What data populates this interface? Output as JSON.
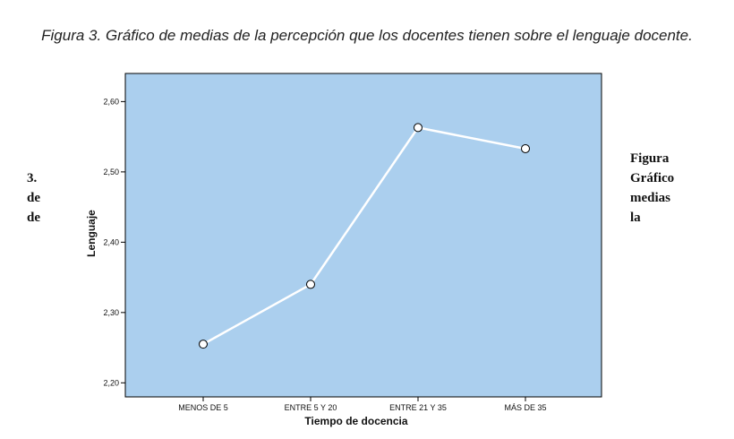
{
  "caption": "Figura 3.  Gráfico de medias de la percepción que los docentes tienen sobre el lenguaje docente.",
  "side_left": [
    "3.",
    "de",
    "de"
  ],
  "side_right": [
    "Figura",
    "Gráfico",
    "medias",
    "la"
  ],
  "colors": {
    "plot_bg": "#abcfee",
    "line": "#ffffff",
    "axis": "#000000"
  },
  "chart_data": {
    "type": "line",
    "title": "",
    "xlabel": "Tiempo de docencia",
    "ylabel": "Lenguaje",
    "categories": [
      "MENOS DE 5",
      "ENTRE 5 Y 20",
      "ENTRE 21 Y 35",
      "MÁS DE 35"
    ],
    "values": [
      2.255,
      2.34,
      2.563,
      2.533
    ],
    "ylim": [
      2.18,
      2.64
    ],
    "yticks": [
      "2,20",
      "2,30",
      "2,40",
      "2,50",
      "2,60"
    ],
    "ytick_values": [
      2.2,
      2.3,
      2.4,
      2.5,
      2.6
    ],
    "grid": false,
    "markers": "open-circle"
  }
}
